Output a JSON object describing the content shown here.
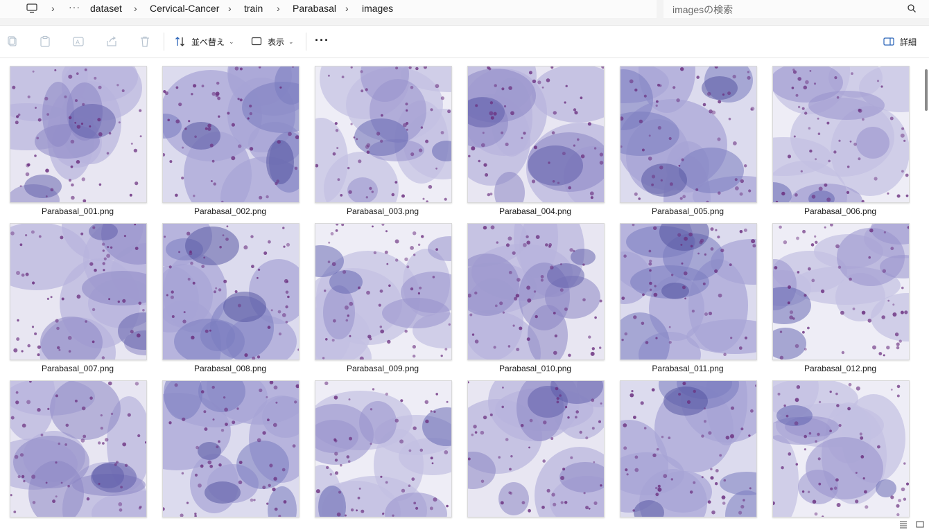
{
  "breadcrumb": {
    "more": "···",
    "items": [
      "dataset",
      "Cervical-Cancer",
      "train",
      "Parabasal",
      "images"
    ]
  },
  "search": {
    "placeholder": "imagesの検索"
  },
  "toolbar": {
    "sort_label": "並べ替え",
    "view_label": "表示",
    "details_label": "詳細"
  },
  "files": [
    "Parabasal_001.png",
    "Parabasal_002.png",
    "Parabasal_003.png",
    "Parabasal_004.png",
    "Parabasal_005.png",
    "Parabasal_006.png",
    "Parabasal_007.png",
    "Parabasal_008.png",
    "Parabasal_009.png",
    "Parabasal_010.png",
    "Parabasal_011.png",
    "Parabasal_012.png",
    "",
    "",
    "",
    "",
    "",
    ""
  ]
}
